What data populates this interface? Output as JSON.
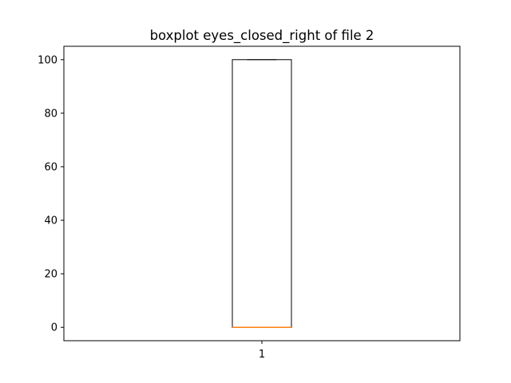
{
  "chart_data": {
    "type": "boxplot",
    "title": "boxplot eyes_closed_right of file 2",
    "xlabel": "",
    "ylabel": "",
    "categories": [
      "1"
    ],
    "boxes": [
      {
        "category": "1",
        "whisker_low": 0,
        "q1": 0,
        "median": 0,
        "q3": 100,
        "whisker_high": 100
      }
    ],
    "ylim": [
      -5,
      105
    ],
    "yticks": [
      0,
      20,
      40,
      60,
      80,
      100
    ],
    "grid": false,
    "legend": "none",
    "colors": {
      "box": "#000000",
      "median": "#ff7f0e"
    }
  }
}
